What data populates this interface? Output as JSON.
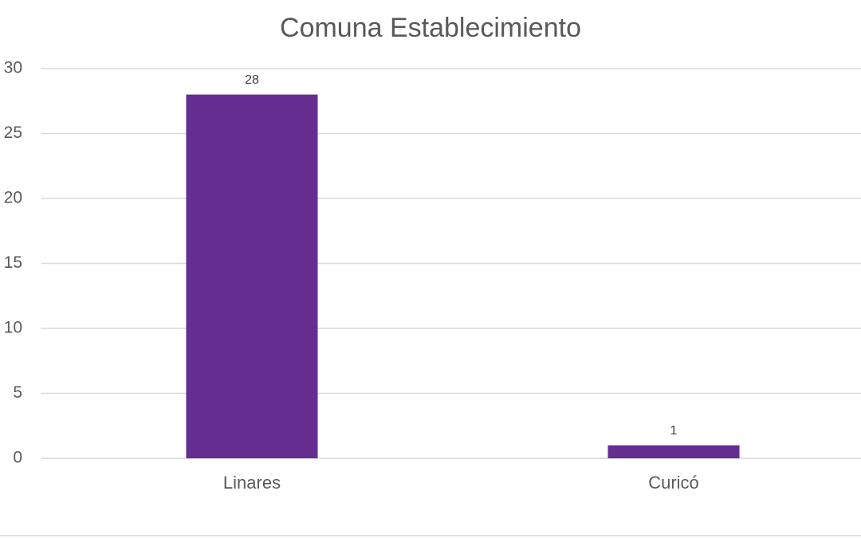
{
  "chart_data": {
    "type": "bar",
    "title": "Comuna Establecimiento",
    "categories": [
      "Linares",
      "Curicó"
    ],
    "values": [
      28,
      1
    ],
    "color": "#662d91",
    "ylim": [
      0,
      30
    ],
    "yticks": [
      0,
      5,
      10,
      15,
      20,
      25,
      30
    ],
    "grid": true,
    "data_labels": true
  }
}
